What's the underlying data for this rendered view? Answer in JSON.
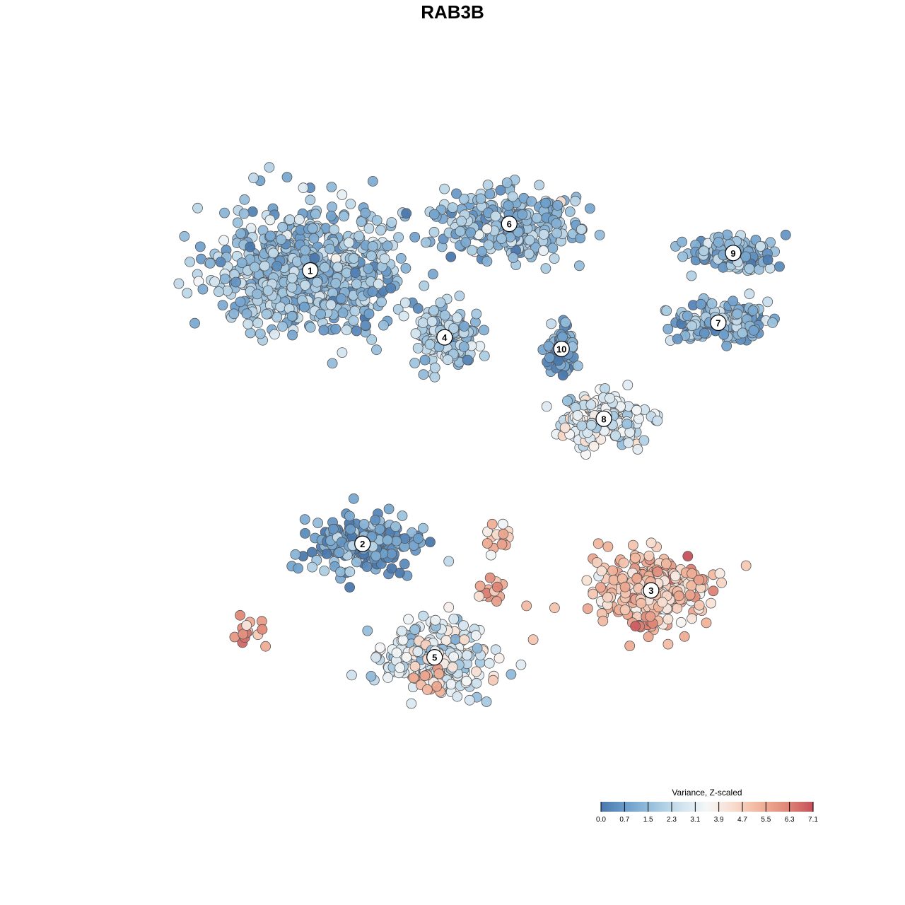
{
  "chart_data": {
    "type": "scatter",
    "title": "RAB3B",
    "xlabel": "",
    "ylabel": "",
    "axes_visible": false,
    "point_style": "circle with dark outline",
    "color_scale": {
      "title": "Variance, Z-scaled",
      "min": 0.0,
      "max": 7.1,
      "ticks": [
        "0.0",
        "0.7",
        "1.5",
        "2.3",
        "3.1",
        "3.9",
        "4.7",
        "5.5",
        "6.3",
        "7.1"
      ],
      "colors": [
        "#4a78ad",
        "#6fa0cc",
        "#9ec4de",
        "#cfe2ee",
        "#f6f7f7",
        "#f8dccd",
        "#f1b39a",
        "#e08878",
        "#c6505a"
      ]
    },
    "clusters": [
      {
        "label": "1",
        "x": -6.5,
        "y": 6.2,
        "mean": 1.6,
        "spread": [
          3.4,
          2.0
        ]
      },
      {
        "label": "2",
        "x": -4.4,
        "y": -3.2,
        "mean": 1.0,
        "spread": [
          1.9,
          0.9
        ]
      },
      {
        "label": "3",
        "x": 7.2,
        "y": -4.8,
        "mean": 5.0,
        "spread": [
          2.2,
          1.1
        ]
      },
      {
        "label": "4",
        "x": -1.1,
        "y": 3.9,
        "mean": 1.9,
        "spread": [
          1.1,
          1.0
        ]
      },
      {
        "label": "5",
        "x": -1.5,
        "y": -7.1,
        "mean": 2.9,
        "spread": [
          2.0,
          1.1
        ]
      },
      {
        "label": "6",
        "x": 1.5,
        "y": 7.8,
        "mean": 1.6,
        "spread": [
          2.6,
          1.0
        ]
      },
      {
        "label": "7",
        "x": 9.9,
        "y": 4.4,
        "mean": 1.5,
        "spread": [
          1.8,
          0.6
        ]
      },
      {
        "label": "8",
        "x": 5.3,
        "y": 1.1,
        "mean": 2.9,
        "spread": [
          1.6,
          0.8
        ]
      },
      {
        "label": "9",
        "x": 10.5,
        "y": 6.8,
        "mean": 1.5,
        "spread": [
          1.5,
          0.5
        ]
      },
      {
        "label": "10",
        "x": 3.6,
        "y": 3.5,
        "mean": 1.2,
        "spread": [
          0.5,
          0.7
        ]
      }
    ],
    "hotspots": [
      {
        "x": -8.9,
        "y": -6.3,
        "value": 6.8
      },
      {
        "x": 6.8,
        "y": -5.9,
        "value": 6.9
      },
      {
        "x": 1.0,
        "y": -3.1,
        "value": 6.0
      },
      {
        "x": 0.7,
        "y": -4.7,
        "value": 6.5
      },
      {
        "x": -1.7,
        "y": -7.8,
        "value": 5.9
      }
    ],
    "xlim": [
      -13,
      13
    ],
    "ylim": [
      -11,
      11
    ]
  }
}
